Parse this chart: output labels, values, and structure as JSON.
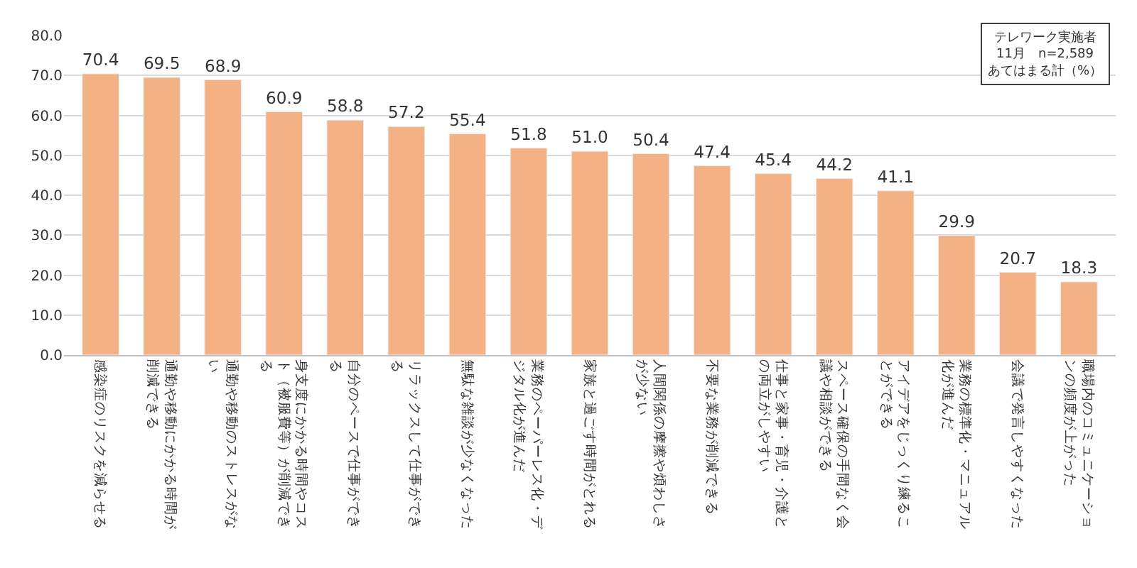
{
  "chart_data": {
    "type": "bar",
    "categories": [
      "感染症のリスクを減らせる",
      "通勤や移動にかかる時間が削減できる",
      "通勤や移動のストレスがない",
      "身支度にかかる時間やコスト（被服費等）が削減できる",
      "自分のペースで仕事ができる",
      "リラックスして仕事ができる",
      "無駄な雑談が少なくなった",
      "業務のペーパーレス化・デジタル化が進んだ",
      "家族と過ごす時間がとれる",
      "人間関係の摩擦や煩わしさが少ない",
      "不要な業務が削減できる",
      "仕事と家事・育児・介護との両立がしやすい",
      "スペース確保の手間なく会議や相談ができる",
      "アイデアをじっくり練ることができる",
      "業務の標準化・マニュアル化が進んだ",
      "会議で発言しやすくなった",
      "職場内のコミュニケーションの頻度が上がった"
    ],
    "values": [
      70.4,
      69.5,
      68.9,
      60.9,
      58.8,
      57.2,
      55.4,
      51.8,
      51.0,
      50.4,
      47.4,
      45.4,
      44.2,
      41.1,
      29.9,
      20.7,
      18.3
    ],
    "value_labels": [
      "70.4",
      "69.5",
      "68.9",
      "60.9",
      "58.8",
      "57.2",
      "55.4",
      "51.8",
      "51.0",
      "50.4",
      "47.4",
      "45.4",
      "44.2",
      "41.1",
      "29.9",
      "20.7",
      "18.3"
    ],
    "color": "#f4b183",
    "ylim": [
      0,
      80
    ],
    "yticks": [
      {
        "value": 0,
        "label": "0.0"
      },
      {
        "value": 10,
        "label": "10.0"
      },
      {
        "value": 20,
        "label": "20.0"
      },
      {
        "value": 30,
        "label": "30.0"
      },
      {
        "value": 40,
        "label": "40.0"
      },
      {
        "value": 50,
        "label": "50.0"
      },
      {
        "value": 60,
        "label": "60.0"
      },
      {
        "value": 70,
        "label": "70.0"
      },
      {
        "value": 80,
        "label": "80.0"
      }
    ],
    "grid": "y",
    "annotations": [
      "テレワーク実施者",
      "11月　n=2,589",
      "あてはまる計（%）"
    ]
  }
}
